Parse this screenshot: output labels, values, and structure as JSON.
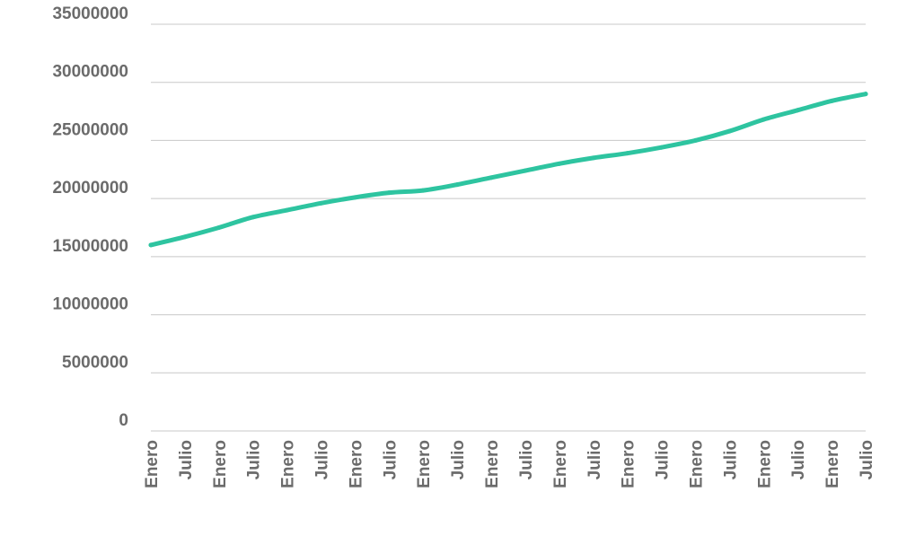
{
  "chart_data": {
    "type": "line",
    "title": "",
    "xlabel": "",
    "ylabel": "",
    "ylim": [
      0,
      35000000
    ],
    "yticks": [
      0,
      5000000,
      10000000,
      15000000,
      20000000,
      25000000,
      30000000,
      35000000
    ],
    "ytick_labels": [
      "0",
      "5000000",
      "10000000",
      "15000000",
      "20000000",
      "25000000",
      "30000000",
      "35000000"
    ],
    "grid": true,
    "legend": "none",
    "categories": [
      "Enero",
      "Julio",
      "Enero",
      "Julio",
      "Enero",
      "Julio",
      "Enero",
      "Julio",
      "Enero",
      "Julio",
      "Enero",
      "Julio",
      "Enero",
      "Julio",
      "Enero",
      "Julio",
      "Enero",
      "Julio",
      "Enero",
      "Julio",
      "Enero",
      "Julio"
    ],
    "series": [
      {
        "color": "#2ec4a0",
        "values": [
          16000000,
          16700000,
          17500000,
          18400000,
          19000000,
          19600000,
          20100000,
          20500000,
          20700000,
          21200000,
          21800000,
          22400000,
          23000000,
          23500000,
          23900000,
          24400000,
          25000000,
          25800000,
          26800000,
          27600000,
          28400000,
          29000000
        ]
      }
    ]
  }
}
